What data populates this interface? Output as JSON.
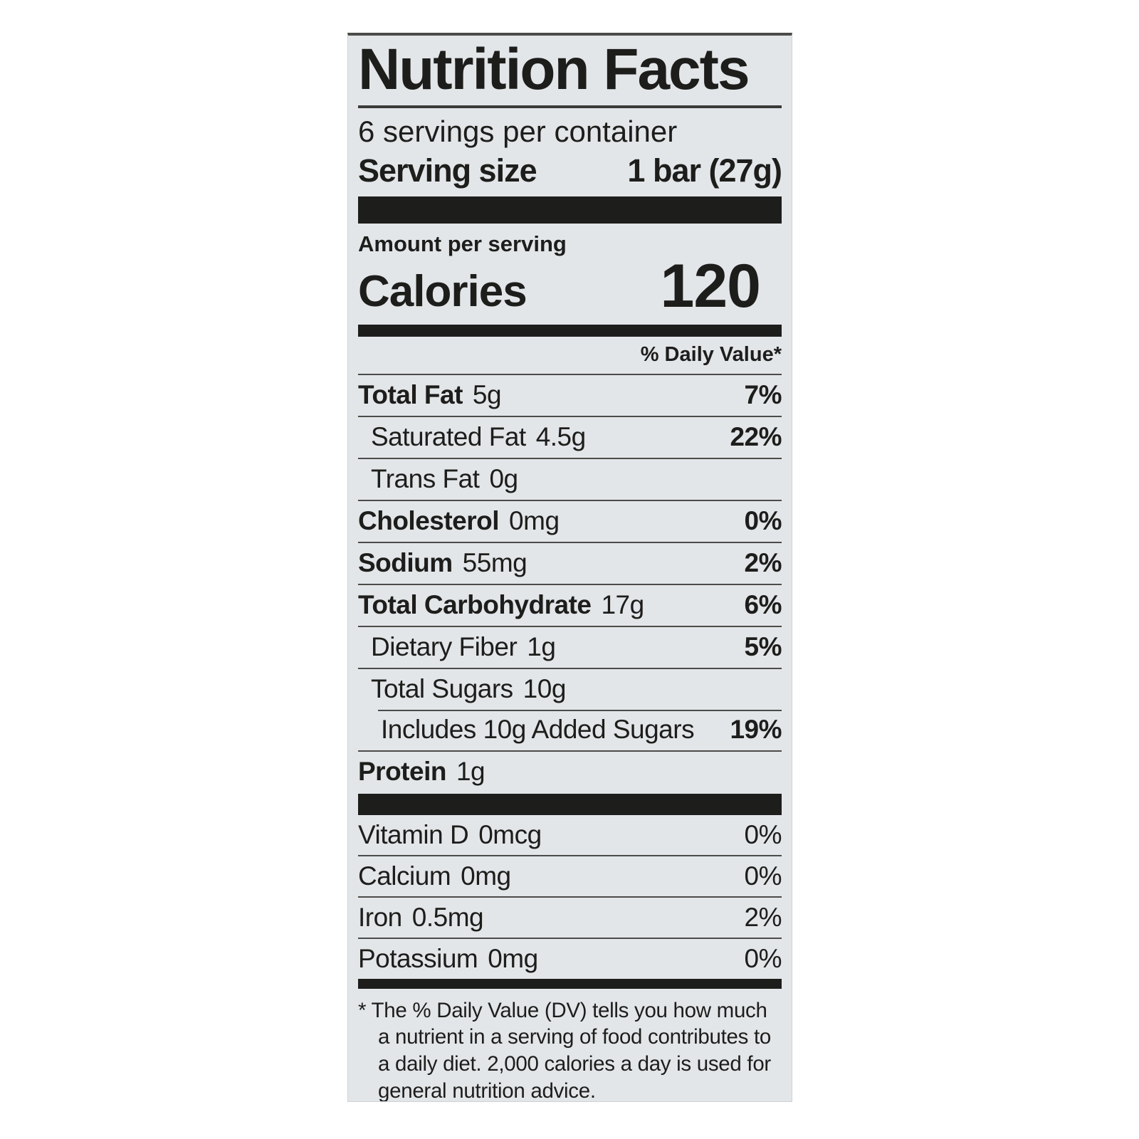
{
  "colors": {
    "label_background": "#e3e6e9",
    "text": "#1d1d1b",
    "bar": "#1d1d1b",
    "rule": "#4b4b49"
  },
  "label": {
    "title": "Nutrition Facts",
    "servings_per_container": "6 servings per container",
    "serving_size": {
      "label": "Serving size",
      "value": "1 bar (27g)"
    },
    "amount_per_serving": "Amount per serving",
    "calories": {
      "label": "Calories",
      "value": "120"
    },
    "daily_value_header": "% Daily Value*",
    "nutrient_rows": [
      {
        "name": "Total Fat",
        "amount": "5g",
        "dv": "7%",
        "name_bold": true,
        "indent": 0,
        "indented_rule": false
      },
      {
        "name": "Saturated Fat",
        "amount": "4.5g",
        "dv": "22%",
        "name_bold": false,
        "indent": 1,
        "indented_rule": false
      },
      {
        "name": "Trans Fat",
        "amount": "0g",
        "dv": "",
        "name_bold": false,
        "indent": 1,
        "indented_rule": false
      },
      {
        "name": "Cholesterol",
        "amount": "0mg",
        "dv": "0%",
        "name_bold": true,
        "indent": 0,
        "indented_rule": false
      },
      {
        "name": "Sodium",
        "amount": "55mg",
        "dv": "2%",
        "name_bold": true,
        "indent": 0,
        "indented_rule": false
      },
      {
        "name": "Total Carbohydrate",
        "amount": "17g",
        "dv": "6%",
        "name_bold": true,
        "indent": 0,
        "indented_rule": false
      },
      {
        "name": "Dietary Fiber",
        "amount": "1g",
        "dv": "5%",
        "name_bold": false,
        "indent": 1,
        "indented_rule": false
      },
      {
        "name": "Total Sugars",
        "amount": "10g",
        "dv": "",
        "name_bold": false,
        "indent": 1,
        "indented_rule": false
      },
      {
        "name": "Includes 10g Added Sugars",
        "amount": "",
        "dv": "19%",
        "name_bold": false,
        "indent": 2,
        "indented_rule": true
      },
      {
        "name": "Protein",
        "amount": "1g",
        "dv": "",
        "name_bold": true,
        "indent": 0,
        "indented_rule": false
      }
    ],
    "micronutrient_rows": [
      {
        "name": "Vitamin D",
        "amount": "0mcg",
        "dv": "0%"
      },
      {
        "name": "Calcium",
        "amount": "0mg",
        "dv": "0%"
      },
      {
        "name": "Iron",
        "amount": "0.5mg",
        "dv": "2%"
      },
      {
        "name": "Potassium",
        "amount": "0mg",
        "dv": "0%"
      }
    ],
    "footnote": "* The % Daily Value (DV) tells you how much a nutrient in a serving of food contributes to a daily diet. 2,000 calories a day is used for general nutrition advice."
  }
}
